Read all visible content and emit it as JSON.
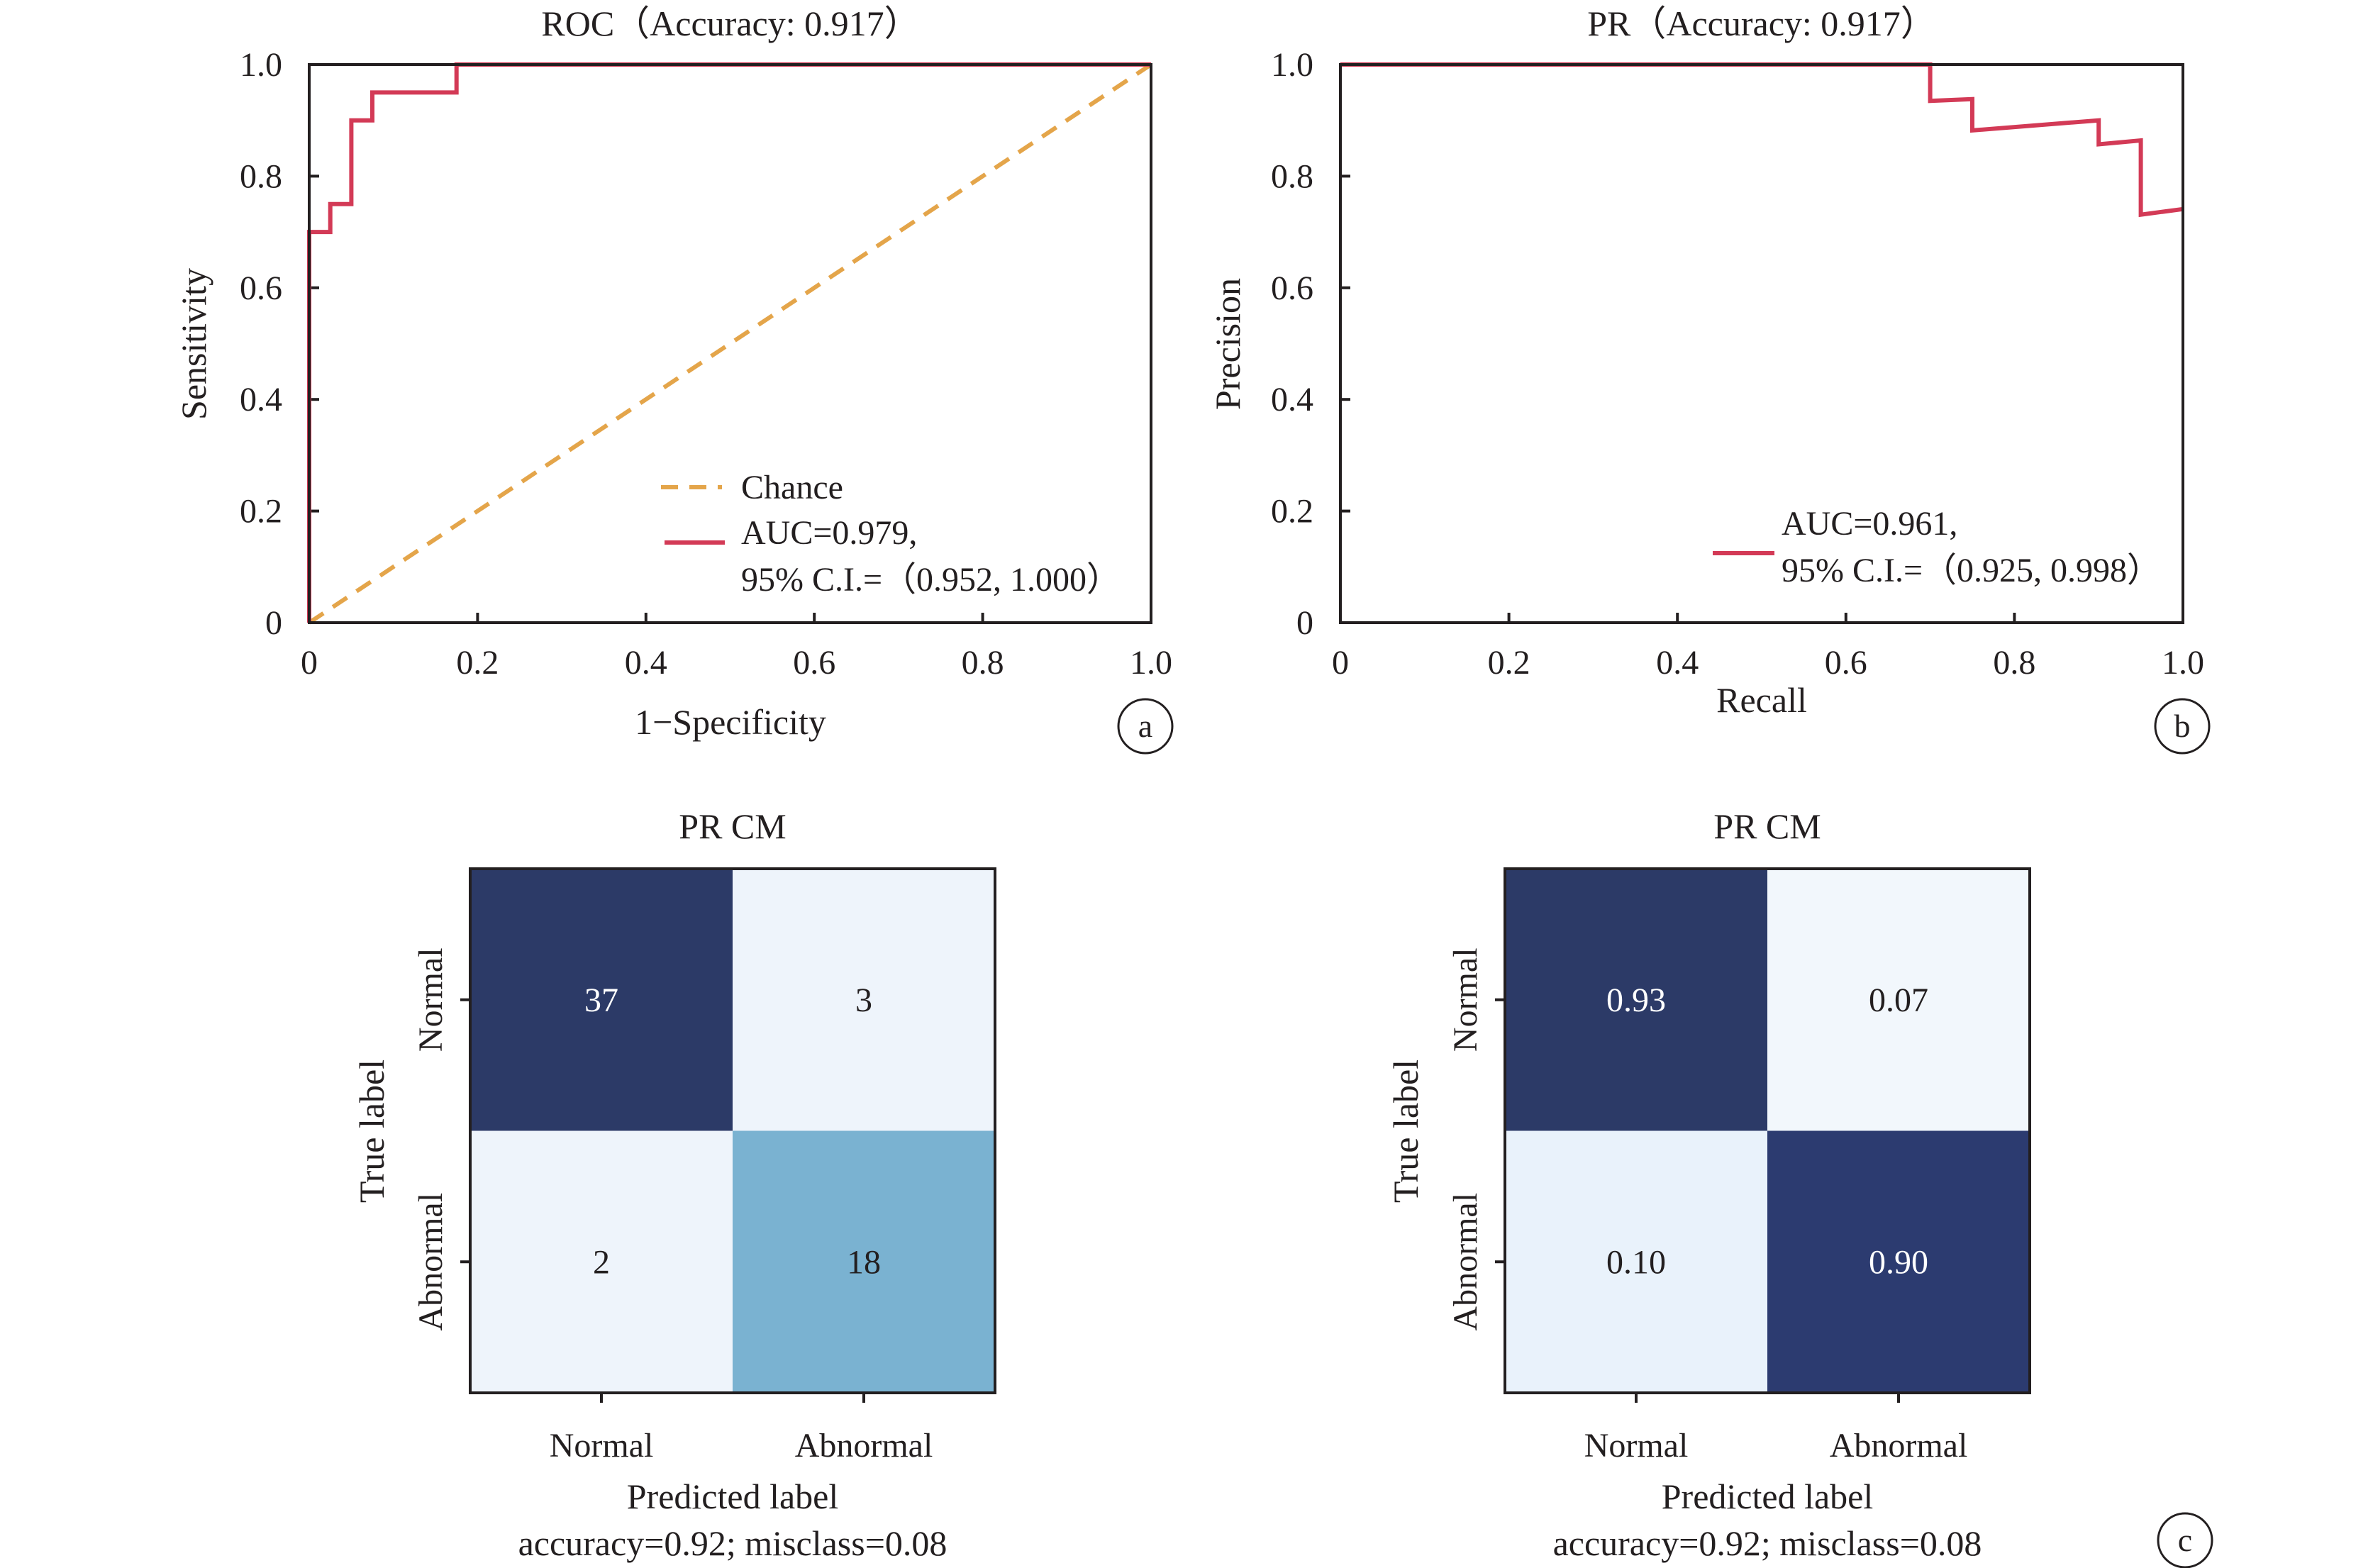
{
  "chart_data": [
    {
      "panel": "a",
      "type": "line",
      "title": "ROC（Accuracy: 0.917）",
      "xlabel": "1−Specificity",
      "ylabel": "Sensitivity",
      "xlim": [
        0,
        1
      ],
      "ylim": [
        0,
        1
      ],
      "xticks": [
        "0",
        "0.2",
        "0.4",
        "0.6",
        "0.8",
        "1.0"
      ],
      "yticks": [
        "0",
        "0.2",
        "0.4",
        "0.6",
        "0.8",
        "1.0"
      ],
      "legend_position": "lower-right",
      "series": [
        {
          "name": "Chance",
          "style": "dashed",
          "color": "#e4a54a",
          "x": [
            0,
            1
          ],
          "y": [
            0,
            1
          ]
        },
        {
          "name": "AUC=0.979,",
          "name_line2": "95% C.I.=（0.952, 1.000）",
          "style": "solid",
          "color": "#d33a56",
          "x": [
            0,
            0,
            0.025,
            0.025,
            0.05,
            0.05,
            0.075,
            0.075,
            0.175,
            0.175,
            1
          ],
          "y": [
            0,
            0.7,
            0.7,
            0.75,
            0.75,
            0.9,
            0.9,
            0.95,
            0.95,
            1.0,
            1.0
          ]
        }
      ]
    },
    {
      "panel": "b",
      "type": "line",
      "title": "PR（Accuracy: 0.917）",
      "xlabel": "Recall",
      "ylabel": "Precision",
      "xlim": [
        0,
        1
      ],
      "ylim": [
        0,
        1
      ],
      "xticks": [
        "0",
        "0.2",
        "0.4",
        "0.6",
        "0.8",
        "1.0"
      ],
      "yticks": [
        "0",
        "0.2",
        "0.4",
        "0.6",
        "0.8",
        "1.0"
      ],
      "legend_position": "lower-right",
      "series": [
        {
          "name": "AUC=0.961,",
          "name_line2": "95% C.I.=（0.925, 0.998）",
          "style": "solid",
          "color": "#d33a56",
          "x": [
            0,
            0.7,
            0.7,
            0.75,
            0.75,
            0.9,
            0.9,
            0.95,
            0.95,
            1.0
          ],
          "y": [
            1.0,
            1.0,
            0.935,
            0.938,
            0.882,
            0.9,
            0.857,
            0.864,
            0.731,
            0.741
          ]
        }
      ]
    },
    {
      "panel": "c-left",
      "type": "heatmap",
      "title": "PR CM",
      "xlabel": "Predicted label",
      "ylabel": "True label",
      "x_categories": [
        "Normal",
        "Abnormal"
      ],
      "y_categories": [
        "Normal",
        "Abnormal"
      ],
      "cells": [
        [
          "37",
          "3"
        ],
        [
          "2",
          "18"
        ]
      ],
      "values": [
        [
          37,
          3
        ],
        [
          2,
          18
        ]
      ],
      "cell_colors": [
        [
          "#2c3a67",
          "#eef4fb"
        ],
        [
          "#eef4fb",
          "#7ab2d1"
        ]
      ],
      "cell_text_colors": [
        [
          "#ffffff",
          "#231f20"
        ],
        [
          "#231f20",
          "#231f20"
        ]
      ],
      "footer": "accuracy=0.92; misclass=0.08"
    },
    {
      "panel": "c-right",
      "type": "heatmap",
      "title": "PR CM",
      "xlabel": "Predicted label",
      "ylabel": "True label",
      "x_categories": [
        "Normal",
        "Abnormal"
      ],
      "y_categories": [
        "Normal",
        "Abnormal"
      ],
      "cells": [
        [
          "0.93",
          "0.07"
        ],
        [
          "0.10",
          "0.90"
        ]
      ],
      "values": [
        [
          0.93,
          0.07
        ],
        [
          0.1,
          0.9
        ]
      ],
      "cell_colors": [
        [
          "#2c3a67",
          "#f2f7fc"
        ],
        [
          "#e9f2fb",
          "#2c3b70"
        ]
      ],
      "cell_text_colors": [
        [
          "#ffffff",
          "#231f20"
        ],
        [
          "#231f20",
          "#ffffff"
        ]
      ],
      "footer": "accuracy=0.92; misclass=0.08"
    }
  ],
  "panel_letters": [
    "a",
    "b",
    "c"
  ]
}
